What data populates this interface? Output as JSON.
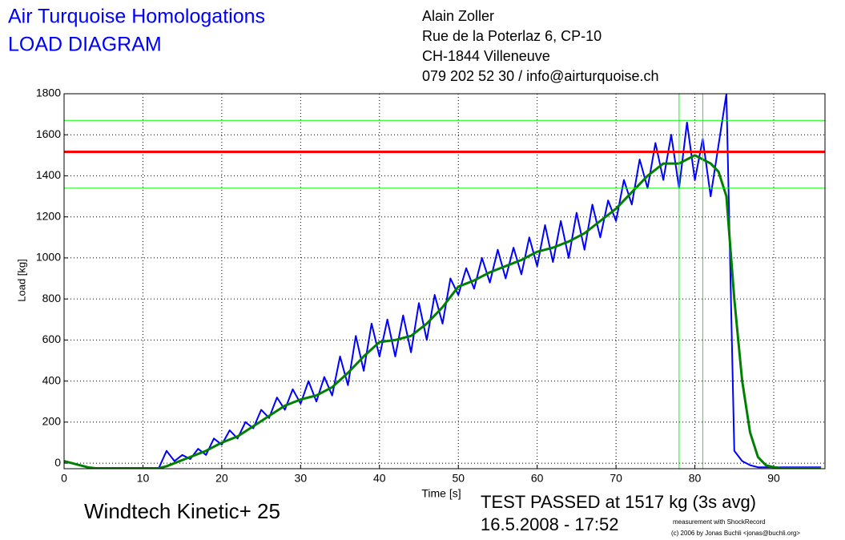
{
  "chart_data": {
    "type": "line",
    "title": "Air Turquoise Homologations",
    "subtitle": "LOAD DIAGRAM",
    "address": [
      "Alain Zoller",
      "Rue de la Poterlaz 6, CP-10",
      "CH-1844 Villeneuve",
      "079 202 52 30 / info@airturquoise.ch"
    ],
    "ylabel": "Load [kg]",
    "xlabel": "Time [s]",
    "product": "Windtech Kinetic+ 25",
    "result": "TEST PASSED at 1517 kg (3s avg)",
    "date": "16.5.2008 - 17:52",
    "credits": [
      "measurement with ShockRecord",
      "(c) 2006 by Jonas Buchli <jonas@buchli.org>"
    ],
    "xlim": [
      0,
      96.5
    ],
    "ylim": [
      -27,
      1800
    ],
    "xticks": [
      0,
      10,
      20,
      30,
      40,
      50,
      60,
      70,
      80,
      90
    ],
    "yticks": [
      0,
      200,
      400,
      600,
      800,
      1000,
      1200,
      1400,
      1600,
      1800
    ],
    "grid": true,
    "x": [
      0,
      1,
      2,
      3,
      4,
      5,
      6,
      7,
      8,
      9,
      10,
      11,
      12,
      13,
      14,
      15,
      16,
      17,
      18,
      19,
      20,
      21,
      22,
      23,
      24,
      25,
      26,
      27,
      28,
      29,
      30,
      31,
      32,
      33,
      34,
      35,
      36,
      37,
      38,
      39,
      40,
      41,
      42,
      43,
      44,
      45,
      46,
      47,
      48,
      49,
      50,
      51,
      52,
      53,
      54,
      55,
      56,
      57,
      58,
      59,
      60,
      61,
      62,
      63,
      64,
      65,
      66,
      67,
      68,
      69,
      70,
      71,
      72,
      73,
      74,
      75,
      76,
      77,
      78,
      79,
      80,
      81,
      82,
      83,
      84,
      85,
      86,
      87,
      88,
      89,
      90,
      91,
      92,
      93,
      94,
      95,
      96
    ],
    "series": [
      {
        "color": "#0000ff",
        "width": 2,
        "values": [
          10,
          0,
          -10,
          -20,
          -25,
          -25,
          -25,
          -25,
          -25,
          -25,
          -25,
          -25,
          -25,
          60,
          10,
          40,
          20,
          70,
          40,
          120,
          90,
          160,
          120,
          200,
          170,
          260,
          220,
          320,
          260,
          360,
          290,
          400,
          300,
          420,
          330,
          520,
          380,
          620,
          450,
          680,
          520,
          700,
          520,
          720,
          540,
          780,
          600,
          820,
          680,
          900,
          820,
          950,
          850,
          1000,
          880,
          1040,
          900,
          1050,
          920,
          1100,
          960,
          1160,
          980,
          1180,
          1000,
          1220,
          1040,
          1260,
          1100,
          1280,
          1180,
          1380,
          1260,
          1480,
          1340,
          1560,
          1380,
          1600,
          1340,
          1660,
          1380,
          1580,
          1300,
          1550,
          1800,
          60,
          10,
          -10,
          -20,
          -20,
          -20,
          -20,
          -20,
          -20,
          -20,
          -20,
          -20
        ]
      },
      {
        "color": "#008000",
        "width": 3,
        "values": [
          10,
          0,
          -10,
          -20,
          -25,
          -25,
          -25,
          -25,
          -25,
          -25,
          -25,
          -25,
          -25,
          -15,
          0,
          15,
          30,
          45,
          60,
          80,
          100,
          115,
          130,
          155,
          180,
          205,
          230,
          255,
          280,
          295,
          310,
          320,
          330,
          350,
          370,
          405,
          440,
          480,
          520,
          555,
          590,
          595,
          600,
          610,
          620,
          650,
          680,
          720,
          760,
          810,
          860,
          875,
          890,
          910,
          930,
          945,
          960,
          975,
          990,
          1010,
          1030,
          1040,
          1050,
          1065,
          1080,
          1100,
          1120,
          1150,
          1180,
          1210,
          1240,
          1280,
          1320,
          1360,
          1400,
          1430,
          1460,
          1460,
          1460,
          1480,
          1500,
          1480,
          1460,
          1420,
          1300,
          800,
          400,
          150,
          30,
          -10,
          -20,
          -25,
          -25,
          -25,
          -25,
          -25,
          -25
        ]
      }
    ],
    "hlines": [
      {
        "value": 1517,
        "color": "#ff0000",
        "width": 3
      },
      {
        "value": 1670,
        "color": "#00ff00",
        "width": 1
      },
      {
        "value": 1340,
        "color": "#00ff00",
        "width": 1
      }
    ],
    "vlines": [
      {
        "value": 78,
        "color": "#00ff00",
        "width": 1
      },
      {
        "value": 81,
        "color": "#00ff00",
        "width": 1
      }
    ]
  }
}
